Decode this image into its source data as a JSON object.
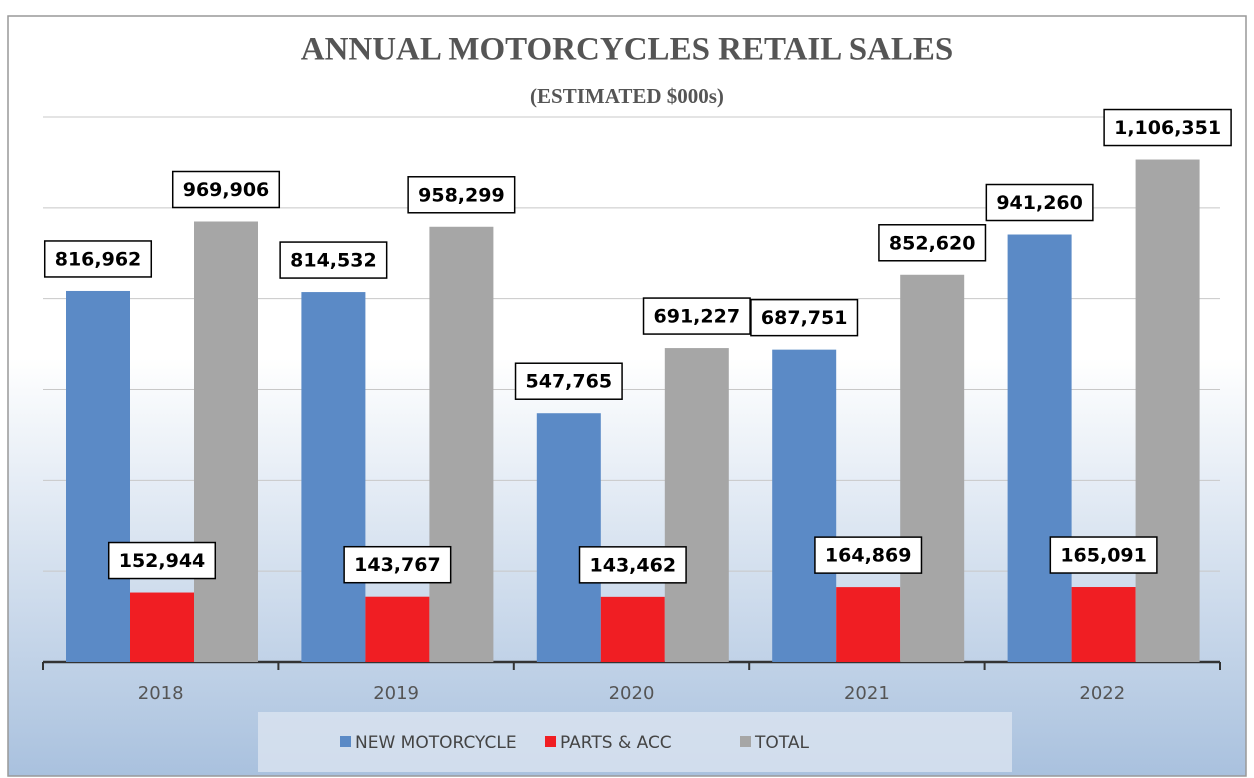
{
  "chart_data": {
    "type": "bar",
    "title": "ANNUAL MOTORCYCLES  RETAIL SALES",
    "subtitle": "(ESTIMATED $000s)",
    "categories": [
      "2018",
      "2019",
      "2020",
      "2021",
      "2022"
    ],
    "series": [
      {
        "name": "NEW MOTORCYCLE",
        "color": "#5b8ac6",
        "values": [
          816962,
          814532,
          547765,
          687751,
          941260
        ],
        "value_labels": [
          "816,962",
          "814,532",
          "547,765",
          "687,751",
          "941,260"
        ]
      },
      {
        "name": "PARTS & ACC",
        "color": "#f01e23",
        "values": [
          152944,
          143767,
          143462,
          164869,
          165091
        ],
        "value_labels": [
          "152,944",
          "143,767",
          "143,462",
          "164,869",
          "165,091"
        ]
      },
      {
        "name": "TOTAL",
        "color": "#a6a6a6",
        "values": [
          969906,
          958299,
          691227,
          852620,
          1106351
        ],
        "value_labels": [
          "969,906",
          "958,299",
          "691,227",
          "852,620",
          "1,106,351"
        ]
      }
    ],
    "ylim": [
      0,
      1200000
    ],
    "yticks": [
      0,
      200000,
      400000,
      600000,
      800000,
      1000000,
      1200000
    ],
    "grid": true,
    "legend": "bottom"
  }
}
